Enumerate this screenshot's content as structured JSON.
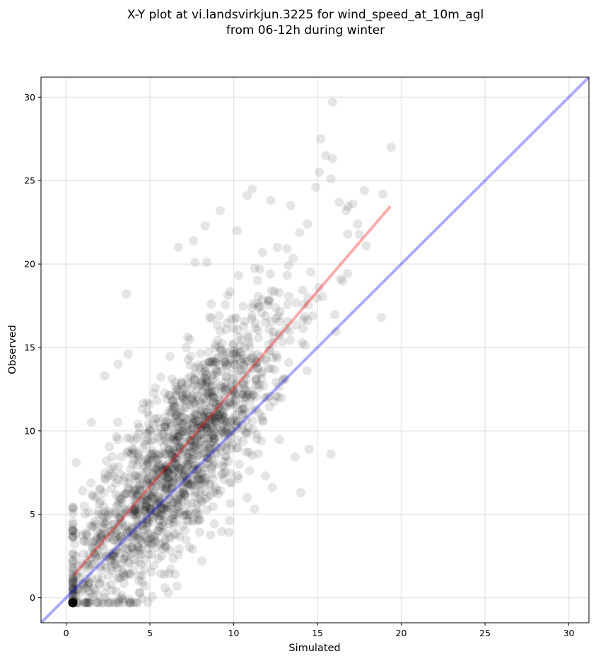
{
  "chart_data": {
    "type": "scatter",
    "title_line1": "X-Y plot at vi.landsvirkjun.3225 for wind_speed_at_10m_agl",
    "title_line2": "from 06-12h during winter",
    "xlabel": "Simulated",
    "ylabel": "Observed",
    "xlim": [
      -1.5,
      31.2
    ],
    "ylim": [
      -1.5,
      31.2
    ],
    "xticks": [
      0,
      5,
      10,
      15,
      20,
      25,
      30
    ],
    "yticks": [
      0,
      5,
      10,
      15,
      20,
      25,
      30
    ],
    "grid": true,
    "point_color": "#000000",
    "point_opacity": 0.1,
    "outlier_points": [
      [
        0.6,
        8.1
      ],
      [
        1.5,
        10.5
      ],
      [
        3.6,
        18.2
      ],
      [
        3.7,
        14.6
      ],
      [
        2.3,
        13.3
      ],
      [
        3.1,
        14.0
      ],
      [
        6.7,
        21.0
      ],
      [
        7.6,
        21.4
      ],
      [
        8.3,
        22.3
      ],
      [
        8.4,
        20.1
      ],
      [
        7.7,
        20.1
      ],
      [
        9.2,
        23.2
      ],
      [
        10.8,
        24.1
      ],
      [
        11.1,
        24.5
      ],
      [
        10.2,
        22.0
      ],
      [
        13.4,
        23.5
      ],
      [
        14.4,
        22.4
      ],
      [
        14.9,
        24.6
      ],
      [
        15.1,
        25.5
      ],
      [
        15.5,
        26.5
      ],
      [
        15.9,
        26.3
      ],
      [
        15.9,
        29.7
      ],
      [
        15.2,
        27.5
      ],
      [
        15.8,
        25.1
      ],
      [
        16.3,
        23.7
      ],
      [
        16.7,
        23.2
      ],
      [
        17.1,
        23.6
      ],
      [
        17.8,
        24.4
      ],
      [
        18.9,
        24.2
      ],
      [
        19.4,
        27.0
      ],
      [
        18.8,
        16.8
      ],
      [
        17.9,
        21.1
      ],
      [
        15.8,
        8.6
      ],
      [
        14.0,
        6.3
      ],
      [
        14.5,
        8.9
      ],
      [
        12.3,
        6.6
      ],
      [
        10.8,
        6.0
      ],
      [
        11.9,
        7.3
      ],
      [
        4.4,
        0.3
      ],
      [
        6.1,
        0.3
      ],
      [
        1.4,
        0.0
      ],
      [
        0.6,
        0.1
      ],
      [
        6.5,
        1.4
      ],
      [
        8.1,
        2.2
      ],
      [
        5.9,
        0.6
      ],
      [
        16.8,
        21.8
      ],
      [
        17.4,
        22.4
      ],
      [
        12.6,
        21.0
      ]
    ],
    "cloud_seed": 12345,
    "cloud_count": 1650,
    "reference_line": {
      "color": "#0000ff",
      "opacity": 0.33,
      "slope": 1,
      "intercept": 0
    },
    "fit_line": {
      "color": "#ff0000",
      "opacity": 0.33,
      "x_start": 0.5,
      "y_start": 1.4,
      "x_end": 19.3,
      "y_end": 23.4
    }
  }
}
